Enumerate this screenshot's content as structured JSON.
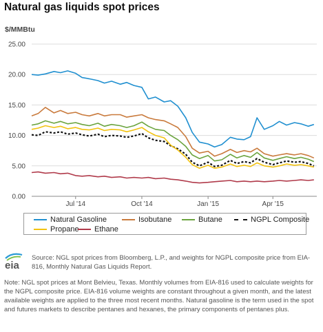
{
  "title": "Natural gas liquids spot prices",
  "chart_data": {
    "type": "line",
    "ylabel": "$/MMBtu",
    "ylim": [
      0,
      25
    ],
    "yticks": [
      "0.00",
      "5.00",
      "10.00",
      "15.00",
      "20.00",
      "25.00"
    ],
    "xlim": [
      "2014-05-01",
      "2015-06-01"
    ],
    "xticks": [
      {
        "label": "Jul '14",
        "date": "2014-07-01"
      },
      {
        "label": "Oct '14",
        "date": "2014-10-01"
      },
      {
        "label": "Jan '15",
        "date": "2015-01-01"
      },
      {
        "label": "Apr '15",
        "date": "2015-04-01"
      }
    ],
    "grid": true,
    "legend_position": "bottom",
    "series": [
      {
        "name": "Natural Gasoline",
        "color": "#1f8fd0",
        "dash": false,
        "points": [
          [
            "2014-05-01",
            20.0
          ],
          [
            "2014-05-10",
            19.9
          ],
          [
            "2014-05-20",
            20.1
          ],
          [
            "2014-06-01",
            20.5
          ],
          [
            "2014-06-10",
            20.3
          ],
          [
            "2014-06-20",
            20.6
          ],
          [
            "2014-07-01",
            20.2
          ],
          [
            "2014-07-10",
            19.5
          ],
          [
            "2014-07-20",
            19.3
          ],
          [
            "2014-08-01",
            19.0
          ],
          [
            "2014-08-10",
            18.6
          ],
          [
            "2014-08-20",
            18.9
          ],
          [
            "2014-09-01",
            18.4
          ],
          [
            "2014-09-10",
            18.7
          ],
          [
            "2014-09-20",
            18.2
          ],
          [
            "2014-10-01",
            17.9
          ],
          [
            "2014-10-10",
            16.0
          ],
          [
            "2014-10-20",
            16.3
          ],
          [
            "2014-11-01",
            15.5
          ],
          [
            "2014-11-10",
            15.7
          ],
          [
            "2014-11-20",
            14.8
          ],
          [
            "2014-12-01",
            12.9
          ],
          [
            "2014-12-10",
            10.5
          ],
          [
            "2014-12-20",
            8.9
          ],
          [
            "2015-01-01",
            8.6
          ],
          [
            "2015-01-10",
            8.1
          ],
          [
            "2015-01-20",
            8.5
          ],
          [
            "2015-02-01",
            9.7
          ],
          [
            "2015-02-10",
            9.4
          ],
          [
            "2015-02-20",
            9.3
          ],
          [
            "2015-03-01",
            9.8
          ],
          [
            "2015-03-10",
            12.9
          ],
          [
            "2015-03-20",
            11.0
          ],
          [
            "2015-04-01",
            11.6
          ],
          [
            "2015-04-10",
            12.3
          ],
          [
            "2015-04-20",
            11.7
          ],
          [
            "2015-05-01",
            12.1
          ],
          [
            "2015-05-10",
            11.9
          ],
          [
            "2015-05-20",
            11.5
          ],
          [
            "2015-05-28",
            11.8
          ]
        ]
      },
      {
        "name": "Isobutane",
        "color": "#c97a3c",
        "dash": false,
        "points": [
          [
            "2014-05-01",
            13.2
          ],
          [
            "2014-05-10",
            13.6
          ],
          [
            "2014-05-20",
            14.6
          ],
          [
            "2014-06-01",
            13.7
          ],
          [
            "2014-06-10",
            14.1
          ],
          [
            "2014-06-20",
            13.6
          ],
          [
            "2014-07-01",
            13.8
          ],
          [
            "2014-07-10",
            13.4
          ],
          [
            "2014-07-20",
            13.2
          ],
          [
            "2014-08-01",
            13.6
          ],
          [
            "2014-08-10",
            13.2
          ],
          [
            "2014-08-20",
            13.4
          ],
          [
            "2014-09-01",
            13.4
          ],
          [
            "2014-09-10",
            13.0
          ],
          [
            "2014-09-20",
            13.2
          ],
          [
            "2014-10-01",
            13.4
          ],
          [
            "2014-10-10",
            12.9
          ],
          [
            "2014-10-20",
            12.6
          ],
          [
            "2014-11-01",
            12.4
          ],
          [
            "2014-11-10",
            11.9
          ],
          [
            "2014-11-20",
            11.3
          ],
          [
            "2014-12-01",
            9.8
          ],
          [
            "2014-12-10",
            7.9
          ],
          [
            "2014-12-20",
            7.1
          ],
          [
            "2015-01-01",
            7.4
          ],
          [
            "2015-01-10",
            6.6
          ],
          [
            "2015-01-20",
            7.0
          ],
          [
            "2015-02-01",
            7.7
          ],
          [
            "2015-02-10",
            7.2
          ],
          [
            "2015-02-20",
            7.5
          ],
          [
            "2015-03-01",
            7.3
          ],
          [
            "2015-03-10",
            7.9
          ],
          [
            "2015-03-20",
            7.0
          ],
          [
            "2015-04-01",
            6.6
          ],
          [
            "2015-04-10",
            6.8
          ],
          [
            "2015-04-20",
            7.0
          ],
          [
            "2015-05-01",
            6.8
          ],
          [
            "2015-05-10",
            7.0
          ],
          [
            "2015-05-20",
            6.7
          ],
          [
            "2015-05-28",
            6.3
          ]
        ]
      },
      {
        "name": "Butane",
        "color": "#6aa33d",
        "dash": false,
        "points": [
          [
            "2014-05-01",
            11.7
          ],
          [
            "2014-05-10",
            11.9
          ],
          [
            "2014-05-20",
            12.4
          ],
          [
            "2014-06-01",
            12.0
          ],
          [
            "2014-06-10",
            12.3
          ],
          [
            "2014-06-20",
            11.9
          ],
          [
            "2014-07-01",
            12.1
          ],
          [
            "2014-07-10",
            11.8
          ],
          [
            "2014-07-20",
            11.6
          ],
          [
            "2014-08-01",
            12.0
          ],
          [
            "2014-08-10",
            11.5
          ],
          [
            "2014-08-20",
            11.8
          ],
          [
            "2014-09-01",
            11.6
          ],
          [
            "2014-09-10",
            11.3
          ],
          [
            "2014-09-20",
            11.6
          ],
          [
            "2014-10-01",
            12.2
          ],
          [
            "2014-10-10",
            11.5
          ],
          [
            "2014-10-20",
            11.0
          ],
          [
            "2014-11-01",
            10.8
          ],
          [
            "2014-11-10",
            10.0
          ],
          [
            "2014-11-20",
            9.3
          ],
          [
            "2014-12-01",
            8.2
          ],
          [
            "2014-12-10",
            6.8
          ],
          [
            "2014-12-20",
            6.2
          ],
          [
            "2015-01-01",
            6.7
          ],
          [
            "2015-01-10",
            5.8
          ],
          [
            "2015-01-20",
            6.0
          ],
          [
            "2015-02-01",
            6.9
          ],
          [
            "2015-02-10",
            6.3
          ],
          [
            "2015-02-20",
            6.7
          ],
          [
            "2015-03-01",
            6.4
          ],
          [
            "2015-03-10",
            7.2
          ],
          [
            "2015-03-20",
            6.3
          ],
          [
            "2015-04-01",
            5.9
          ],
          [
            "2015-04-10",
            6.2
          ],
          [
            "2015-04-20",
            6.5
          ],
          [
            "2015-05-01",
            6.2
          ],
          [
            "2015-05-10",
            6.4
          ],
          [
            "2015-05-20",
            6.1
          ],
          [
            "2015-05-28",
            5.7
          ]
        ]
      },
      {
        "name": "NGPL Composite",
        "color": "#111111",
        "dash": true,
        "points": [
          [
            "2014-05-01",
            10.1
          ],
          [
            "2014-05-10",
            10.0
          ],
          [
            "2014-05-20",
            10.6
          ],
          [
            "2014-06-01",
            10.4
          ],
          [
            "2014-06-10",
            10.6
          ],
          [
            "2014-06-20",
            10.2
          ],
          [
            "2014-07-01",
            10.4
          ],
          [
            "2014-07-10",
            10.1
          ],
          [
            "2014-07-20",
            9.9
          ],
          [
            "2014-08-01",
            10.2
          ],
          [
            "2014-08-10",
            9.8
          ],
          [
            "2014-08-20",
            10.0
          ],
          [
            "2014-09-01",
            9.9
          ],
          [
            "2014-09-10",
            9.7
          ],
          [
            "2014-09-20",
            9.9
          ],
          [
            "2014-10-01",
            10.3
          ],
          [
            "2014-10-10",
            9.6
          ],
          [
            "2014-10-20",
            9.2
          ],
          [
            "2014-11-01",
            9.0
          ],
          [
            "2014-11-10",
            8.3
          ],
          [
            "2014-11-20",
            7.8
          ],
          [
            "2014-12-01",
            6.9
          ],
          [
            "2014-12-10",
            5.6
          ],
          [
            "2014-12-20",
            5.0
          ],
          [
            "2015-01-01",
            5.6
          ],
          [
            "2015-01-10",
            4.9
          ],
          [
            "2015-01-20",
            5.1
          ],
          [
            "2015-02-01",
            5.9
          ],
          [
            "2015-02-10",
            5.4
          ],
          [
            "2015-02-20",
            5.7
          ],
          [
            "2015-03-01",
            5.5
          ],
          [
            "2015-03-10",
            6.2
          ],
          [
            "2015-03-20",
            5.6
          ],
          [
            "2015-04-01",
            5.2
          ],
          [
            "2015-04-10",
            5.5
          ],
          [
            "2015-04-20",
            5.8
          ],
          [
            "2015-05-01",
            5.6
          ],
          [
            "2015-05-10",
            5.7
          ],
          [
            "2015-05-20",
            5.4
          ],
          [
            "2015-05-28",
            5.0
          ]
        ]
      },
      {
        "name": "Propane",
        "color": "#f2c20f",
        "dash": false,
        "points": [
          [
            "2014-05-01",
            11.0
          ],
          [
            "2014-05-10",
            11.2
          ],
          [
            "2014-05-20",
            11.6
          ],
          [
            "2014-06-01",
            11.3
          ],
          [
            "2014-06-10",
            11.5
          ],
          [
            "2014-06-20",
            11.1
          ],
          [
            "2014-07-01",
            11.3
          ],
          [
            "2014-07-10",
            11.0
          ],
          [
            "2014-07-20",
            10.9
          ],
          [
            "2014-08-01",
            11.2
          ],
          [
            "2014-08-10",
            10.8
          ],
          [
            "2014-08-20",
            11.0
          ],
          [
            "2014-09-01",
            10.9
          ],
          [
            "2014-09-10",
            10.6
          ],
          [
            "2014-09-20",
            10.9
          ],
          [
            "2014-10-01",
            11.3
          ],
          [
            "2014-10-10",
            10.6
          ],
          [
            "2014-10-20",
            10.0
          ],
          [
            "2014-11-01",
            9.6
          ],
          [
            "2014-11-10",
            8.4
          ],
          [
            "2014-11-20",
            7.6
          ],
          [
            "2014-12-01",
            6.4
          ],
          [
            "2014-12-10",
            5.2
          ],
          [
            "2014-12-20",
            4.6
          ],
          [
            "2015-01-01",
            5.1
          ],
          [
            "2015-01-10",
            4.6
          ],
          [
            "2015-01-20",
            4.8
          ],
          [
            "2015-02-01",
            5.3
          ],
          [
            "2015-02-10",
            4.9
          ],
          [
            "2015-02-20",
            5.1
          ],
          [
            "2015-03-01",
            4.9
          ],
          [
            "2015-03-10",
            5.5
          ],
          [
            "2015-03-20",
            5.0
          ],
          [
            "2015-04-01",
            4.8
          ],
          [
            "2015-04-10",
            5.0
          ],
          [
            "2015-04-20",
            5.3
          ],
          [
            "2015-05-01",
            5.1
          ],
          [
            "2015-05-10",
            5.2
          ],
          [
            "2015-05-20",
            5.0
          ],
          [
            "2015-05-28",
            4.8
          ]
        ]
      },
      {
        "name": "Ethane",
        "color": "#b03a4a",
        "dash": false,
        "points": [
          [
            "2014-05-01",
            3.9
          ],
          [
            "2014-05-10",
            4.0
          ],
          [
            "2014-05-20",
            3.8
          ],
          [
            "2014-06-01",
            3.9
          ],
          [
            "2014-06-10",
            3.7
          ],
          [
            "2014-06-20",
            3.8
          ],
          [
            "2014-07-01",
            3.4
          ],
          [
            "2014-07-10",
            3.3
          ],
          [
            "2014-07-20",
            3.4
          ],
          [
            "2014-08-01",
            3.2
          ],
          [
            "2014-08-10",
            3.3
          ],
          [
            "2014-08-20",
            3.1
          ],
          [
            "2014-09-01",
            3.2
          ],
          [
            "2014-09-10",
            3.0
          ],
          [
            "2014-09-20",
            3.1
          ],
          [
            "2014-10-01",
            3.0
          ],
          [
            "2014-10-10",
            3.1
          ],
          [
            "2014-10-20",
            2.9
          ],
          [
            "2014-11-01",
            3.0
          ],
          [
            "2014-11-10",
            2.8
          ],
          [
            "2014-11-20",
            2.7
          ],
          [
            "2014-12-01",
            2.5
          ],
          [
            "2014-12-10",
            2.3
          ],
          [
            "2014-12-20",
            2.2
          ],
          [
            "2015-01-01",
            2.3
          ],
          [
            "2015-01-10",
            2.4
          ],
          [
            "2015-01-20",
            2.5
          ],
          [
            "2015-02-01",
            2.6
          ],
          [
            "2015-02-10",
            2.4
          ],
          [
            "2015-02-20",
            2.5
          ],
          [
            "2015-03-01",
            2.4
          ],
          [
            "2015-03-10",
            2.5
          ],
          [
            "2015-03-20",
            2.4
          ],
          [
            "2015-04-01",
            2.5
          ],
          [
            "2015-04-10",
            2.6
          ],
          [
            "2015-04-20",
            2.5
          ],
          [
            "2015-05-01",
            2.6
          ],
          [
            "2015-05-10",
            2.7
          ],
          [
            "2015-05-20",
            2.6
          ],
          [
            "2015-05-28",
            2.7
          ]
        ]
      }
    ]
  },
  "legend": [
    {
      "name": "Natural Gasoline",
      "color": "#1f8fd0",
      "dash": false
    },
    {
      "name": "Isobutane",
      "color": "#c97a3c",
      "dash": false
    },
    {
      "name": "Butane",
      "color": "#6aa33d",
      "dash": false
    },
    {
      "name": "NGPL Composite",
      "color": "#111111",
      "dash": true
    },
    {
      "name": "Propane",
      "color": "#f2c20f",
      "dash": false
    },
    {
      "name": "Ethane",
      "color": "#b03a4a",
      "dash": false
    }
  ],
  "logo": {
    "text": "eia",
    "icon": "eia-logo-icon"
  },
  "source": "Source: NGL spot prices from Bloomberg, L.P., and weights for NGPL composite price from EIA-816, Monthly Natural Gas Liquids Report.",
  "note": "Note: NGL spot prices at Mont Belvieu, Texas. Monthly volumes from EIA-816 used to calculate weights for the NGPL composite price. EIA-816 volume weights are constant throughout a given month, and the latest available weights are applied to the three most recent months. Natural gasoline is the term used in the spot and futures markets to describe pentanes and hexanes, the primary components of pentanes plus."
}
